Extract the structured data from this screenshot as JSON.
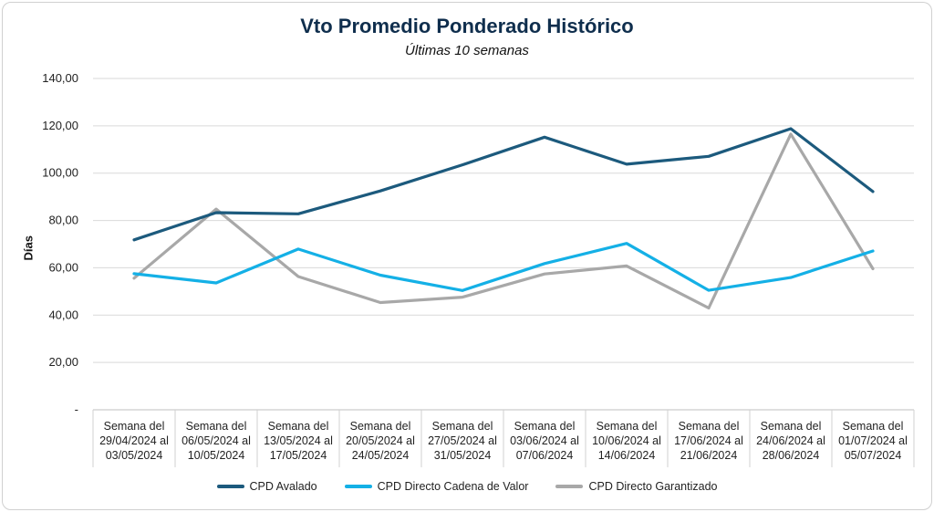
{
  "chart_data": {
    "type": "line",
    "title": "Vto Promedio Ponderado Histórico",
    "subtitle": "Últimas 10 semanas",
    "ylabel": "Días",
    "xlabel": "",
    "ylim": [
      0,
      140
    ],
    "yticks": [
      {
        "value": 0,
        "label": "-"
      },
      {
        "value": 20,
        "label": "20,00"
      },
      {
        "value": 40,
        "label": "40,00"
      },
      {
        "value": 60,
        "label": "60,00"
      },
      {
        "value": 80,
        "label": "80,00"
      },
      {
        "value": 100,
        "label": "100,00"
      },
      {
        "value": 120,
        "label": "120,00"
      },
      {
        "value": 140,
        "label": "140,00"
      }
    ],
    "grid": true,
    "legend_position": "bottom",
    "categories": [
      [
        "Semana del",
        "29/04/2024 al",
        "03/05/2024"
      ],
      [
        "Semana del",
        "06/05/2024 al",
        "10/05/2024"
      ],
      [
        "Semana del",
        "13/05/2024 al",
        "17/05/2024"
      ],
      [
        "Semana del",
        "20/05/2024 al",
        "24/05/2024"
      ],
      [
        "Semana del",
        "27/05/2024 al",
        "31/05/2024"
      ],
      [
        "Semana del",
        "03/06/2024 al",
        "07/06/2024"
      ],
      [
        "Semana del",
        "10/06/2024 al",
        "14/06/2024"
      ],
      [
        "Semana del",
        "17/06/2024 al",
        "21/06/2024"
      ],
      [
        "Semana del",
        "24/06/2024 al",
        "28/06/2024"
      ],
      [
        "Semana del",
        "01/07/2024 al",
        "05/07/2024"
      ]
    ],
    "series": [
      {
        "name": "CPD Avalado",
        "color": "#1c5a7d",
        "values": [
          71.8,
          83.3,
          82.8,
          92.5,
          103.5,
          115.2,
          103.8,
          107.1,
          118.8,
          92.2
        ]
      },
      {
        "name": "CPD Directo Cadena de Valor",
        "color": "#14b0e6",
        "values": [
          57.5,
          53.6,
          67.9,
          56.9,
          50.4,
          61.8,
          70.3,
          50.5,
          55.9,
          67.1
        ]
      },
      {
        "name": "CPD Directo Garantizado",
        "color": "#a8a8a8",
        "values": [
          55.6,
          84.8,
          56.3,
          45.3,
          47.6,
          57.4,
          60.8,
          43.0,
          116.5,
          59.6
        ]
      }
    ]
  }
}
